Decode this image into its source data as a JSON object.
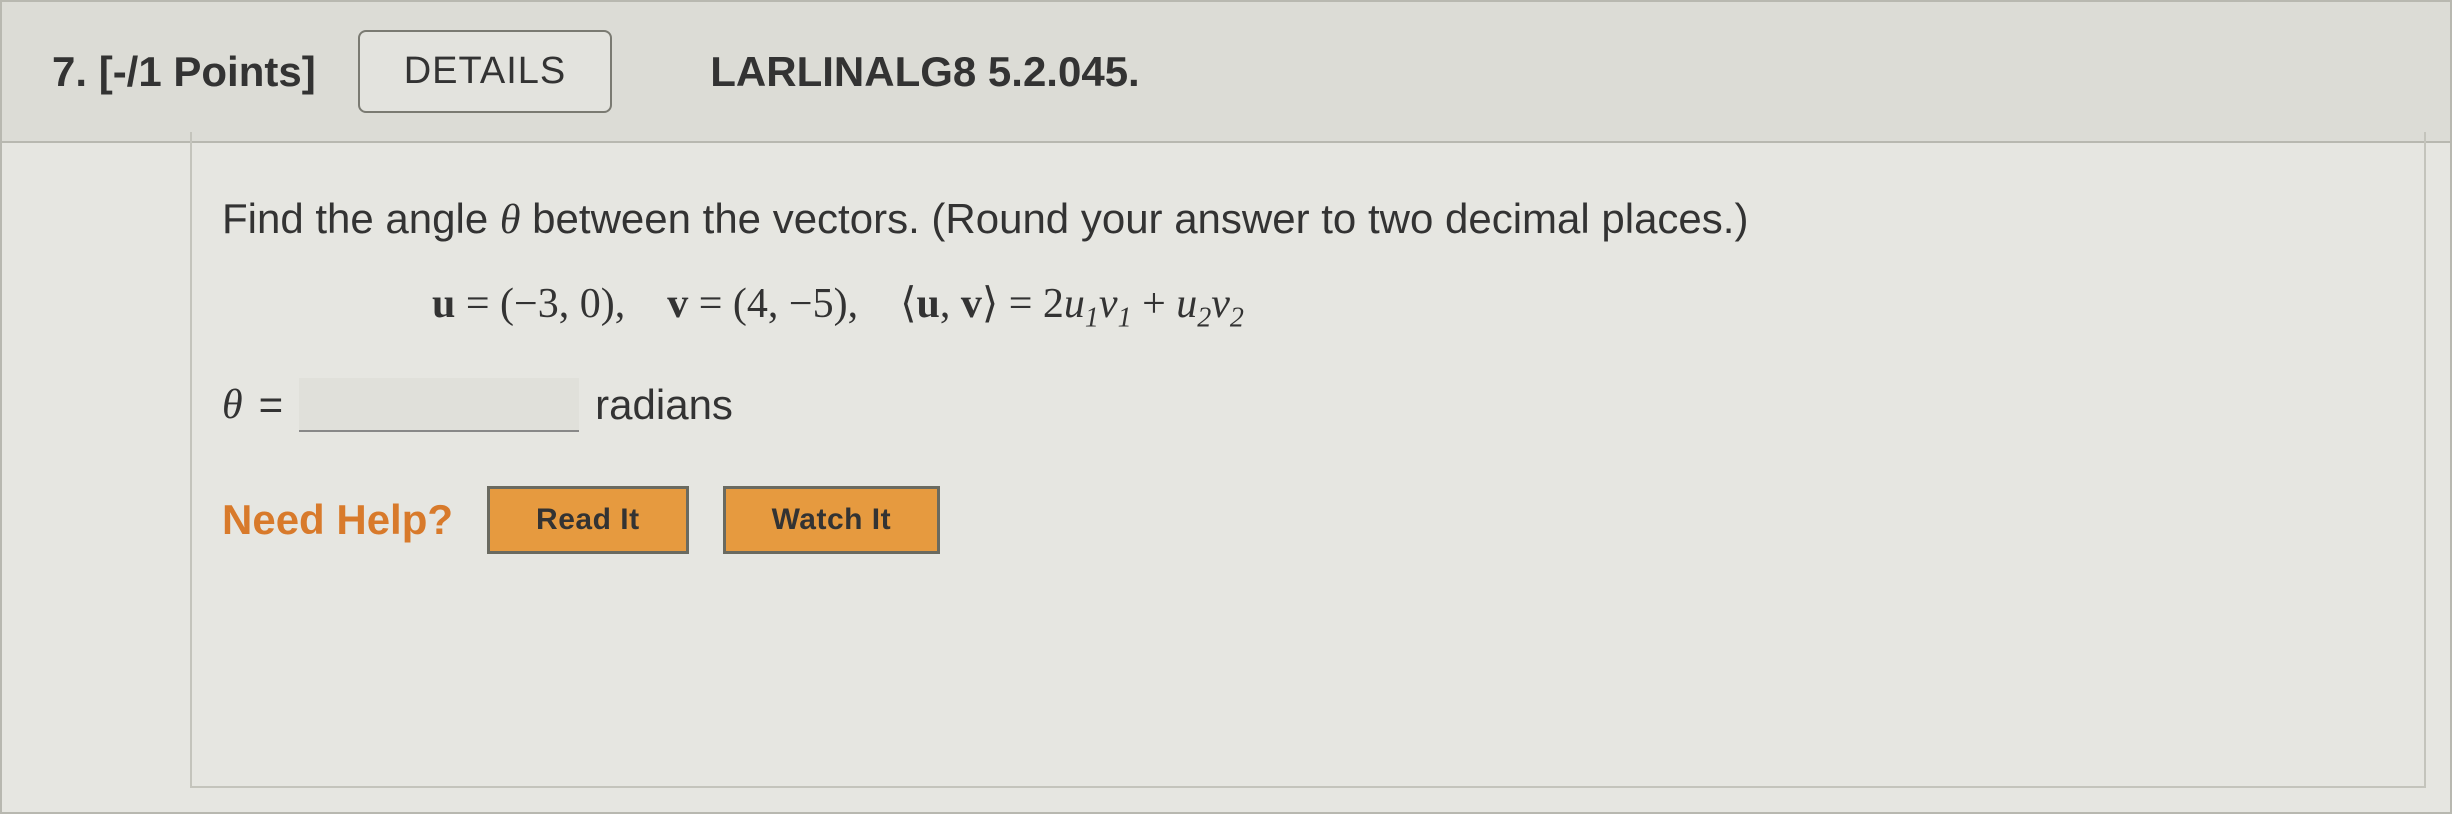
{
  "header": {
    "number": "7.",
    "points": "[-/1 Points]",
    "details_label": "DETAILS",
    "source": "LARLINALG8 5.2.045."
  },
  "question": {
    "prompt_prefix": "Find the angle ",
    "theta": "θ",
    "prompt_suffix": " between the vectors. (Round your answer to two decimal places.)",
    "u_label": "u",
    "u_eq": " = (−3, 0),",
    "v_label": "v",
    "v_eq": " = (4, −5),",
    "innerprod_open": "⟨",
    "innerprod_u": "u",
    "innerprod_sep": ", ",
    "innerprod_v": "v",
    "innerprod_close": "⟩",
    "innerprod_eq": " = 2",
    "u1": "u",
    "sub1": "1",
    "v1": "v",
    "subv1": "1",
    "plus": " + ",
    "u2": "u",
    "sub2": "2",
    "v2": "v",
    "subv2": "2"
  },
  "answer": {
    "theta": "θ",
    "equals": " = ",
    "value": "",
    "unit": "radians"
  },
  "help": {
    "label": "Need Help?",
    "read": "Read It",
    "watch": "Watch It"
  },
  "colors": {
    "help_accent": "#d87a2b",
    "help_btn_bg": "#e69a3f",
    "bg": "#e6e6e1",
    "header_bg": "#dcdcd6",
    "border": "#b8b8b0"
  }
}
